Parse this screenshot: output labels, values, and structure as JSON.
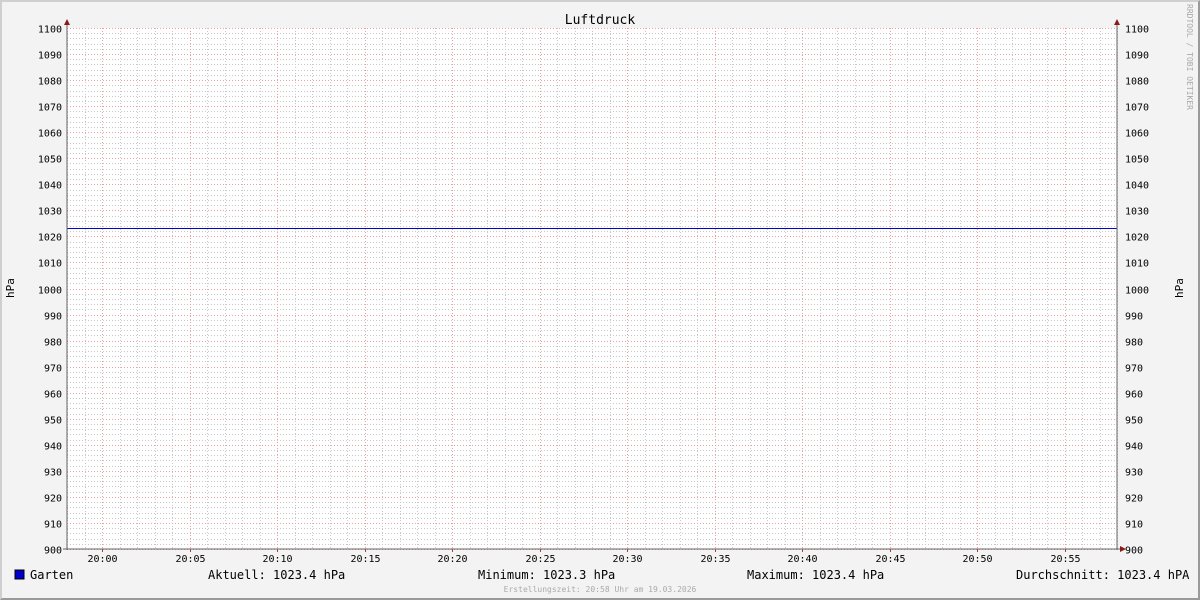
{
  "chart_data": {
    "type": "line",
    "title": "Luftdruck",
    "ylabel": "hPa",
    "ylabel_right": "hPa",
    "ylim": [
      900,
      1100
    ],
    "y_ticks": [
      900,
      910,
      920,
      930,
      940,
      950,
      960,
      970,
      980,
      990,
      1000,
      1010,
      1020,
      1030,
      1040,
      1050,
      1060,
      1070,
      1080,
      1090,
      1100
    ],
    "x_range": [
      "19:58",
      "20:58"
    ],
    "x_ticks": [
      "20:00",
      "20:05",
      "20:10",
      "20:15",
      "20:20",
      "20:25",
      "20:30",
      "20:35",
      "20:40",
      "20:45",
      "20:50",
      "20:55"
    ],
    "grid": true,
    "series": [
      {
        "name": "Garten",
        "color": "#0000cc",
        "x": [
          "19:58",
          "20:58"
        ],
        "values": [
          1023.4,
          1023.4
        ]
      }
    ]
  },
  "legend": {
    "series_name": "Garten",
    "current": "Aktuell: 1023.4 hPa",
    "minimum": "Minimum: 1023.3 hPa",
    "maximum": "Maximum: 1023.4 hPa",
    "average": "Durchschnitt: 1023.4 hPA"
  },
  "footer": "Erstellungszeit: 20:58 Uhr am 19.03.2026",
  "watermark": "RRDTOOL / TOBI OETIKER"
}
